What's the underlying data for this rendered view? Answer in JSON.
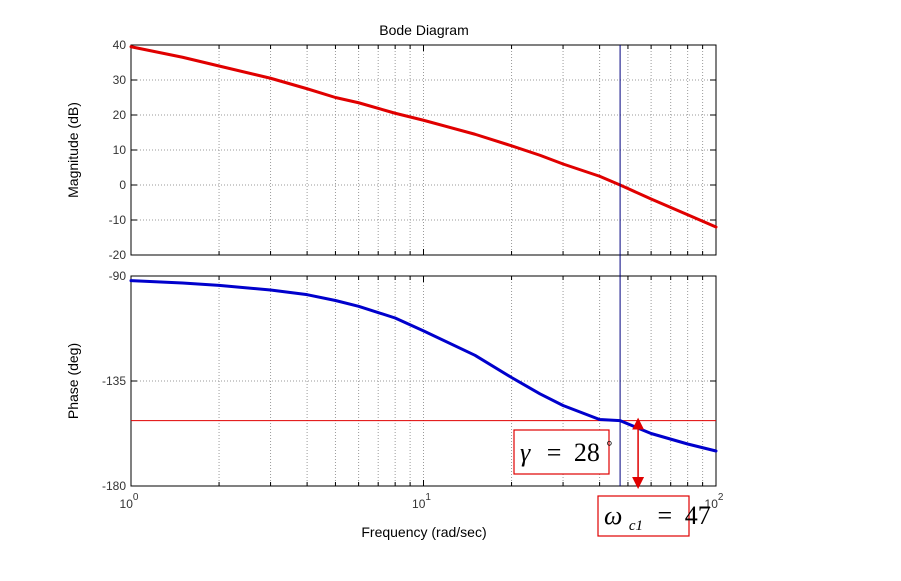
{
  "figure": {
    "title": "Bode Diagram",
    "xlabel": "Frequency (rad/sec)",
    "accent_color": "#e00000",
    "phase_color": "#0000cc"
  },
  "annotations": {
    "gamma": {
      "symbol": "γ",
      "equals": "=",
      "value": "28",
      "degree": "°"
    },
    "omega": {
      "symbol": "ω",
      "subscript": "c1",
      "equals": "=",
      "value": "47"
    }
  },
  "chart_data": [
    {
      "type": "line",
      "name": "magnitude",
      "title": "Bode Diagram",
      "xlabel": "Frequency (rad/sec)",
      "ylabel": "Magnitude (dB)",
      "x_scale": "log",
      "xlim": [
        1,
        100
      ],
      "ylim": [
        -20,
        40
      ],
      "y_ticks": [
        "40",
        "30",
        "20",
        "10",
        "0",
        "-10",
        "-20"
      ],
      "x_ticks": [
        {
          "base": "10",
          "exp": "0"
        },
        {
          "base": "10",
          "exp": "1"
        },
        {
          "base": "10",
          "exp": "2"
        }
      ],
      "grid": true,
      "series": [
        {
          "color": "#e00000",
          "x": [
            1,
            1.5,
            2,
            3,
            4,
            5,
            6,
            8,
            10,
            15,
            20,
            25,
            30,
            40,
            47,
            60,
            80,
            100
          ],
          "y": [
            39.5,
            36.5,
            34,
            30.5,
            27.5,
            25,
            23.5,
            20.5,
            18.5,
            14.5,
            11.2,
            8.5,
            6.0,
            2.5,
            0,
            -4.0,
            -8.5,
            -12.0
          ]
        }
      ]
    },
    {
      "type": "line",
      "name": "phase",
      "xlabel": "Frequency (rad/sec)",
      "ylabel": "Phase (deg)",
      "x_scale": "log",
      "xlim": [
        1,
        100
      ],
      "ylim": [
        -180,
        -90
      ],
      "y_ticks": [
        "-90",
        "-135",
        "-180"
      ],
      "x_ticks": [
        {
          "base": "10",
          "exp": "0"
        },
        {
          "base": "10",
          "exp": "1"
        },
        {
          "base": "10",
          "exp": "2"
        }
      ],
      "grid": true,
      "series": [
        {
          "color": "#0000cc",
          "x": [
            1,
            1.5,
            2,
            3,
            4,
            5,
            6,
            8,
            10,
            15,
            20,
            25,
            30,
            40,
            47,
            60,
            80,
            100
          ],
          "y": [
            -92.0,
            -93.0,
            -94.0,
            -96.0,
            -98.0,
            -100.5,
            -103.0,
            -108.0,
            -113.5,
            -124.0,
            -133.5,
            -140.5,
            -145.5,
            -151.5,
            -152.0,
            -157.5,
            -162.0,
            -165.0
          ]
        }
      ],
      "reference_lines": [
        {
          "orientation": "horizontal",
          "value": -152,
          "color": "#e00000"
        },
        {
          "orientation": "vertical",
          "value": 47,
          "color": "#000080"
        }
      ]
    }
  ]
}
